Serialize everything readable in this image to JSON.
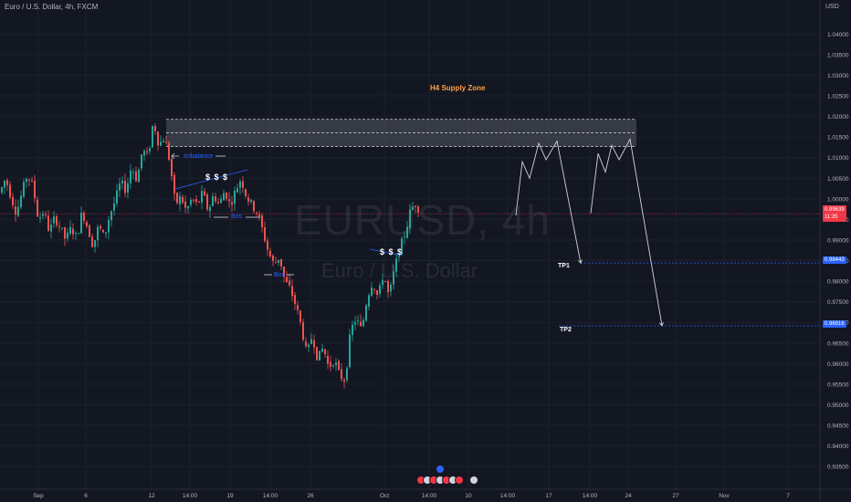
{
  "header": {
    "symbol_line": "Euro / U.S. Dollar, 4h, FXCM",
    "currency": "USD"
  },
  "watermark": {
    "ticker": "EURUSD, 4h",
    "name": "Euro / U.S. Dollar"
  },
  "annotations": {
    "supply_zone": "H4 Supply Zone",
    "imbalance": "Imbalance",
    "bos": "Bos",
    "liquidity": "$ $ $",
    "tp1": "TP1",
    "tp2": "TP2"
  },
  "price_tags": {
    "current": "0.99639",
    "countdown": "11:35",
    "tp1": "0.98443",
    "tp2": "0.96916"
  },
  "colors": {
    "background": "#131722",
    "up": "#26a69a",
    "down": "#ef5350",
    "grid": "#1e222d",
    "accent": "#2962ff",
    "supply_label": "#ff9f45"
  },
  "chart_data": {
    "type": "candlestick",
    "title": "Euro / U.S. Dollar, 4h, FXCM",
    "ylabel": "USD",
    "ylim": [
      0.9295,
      1.0465
    ],
    "y_ticks": [
      "1.04000",
      "1.03500",
      "1.03000",
      "1.02500",
      "1.02000",
      "1.01500",
      "1.01000",
      "1.00500",
      "1.00000",
      "0.99500",
      "0.99000",
      "0.98500",
      "0.98000",
      "0.97500",
      "0.97000",
      "0.96500",
      "0.96000",
      "0.95500",
      "0.95000",
      "0.94500",
      "0.94000",
      "0.93500"
    ],
    "x_ticks": [
      "Sep",
      "6",
      "12",
      "14:00",
      "19",
      "14:00",
      "26",
      "Oct",
      "14:00",
      "10",
      "14:00",
      "17",
      "14:00",
      "24",
      "27",
      "Nov",
      "7"
    ],
    "supply_zone": {
      "top": 1.0193,
      "mid": 1.016,
      "bottom": 1.0127
    },
    "current_price": 0.99639,
    "targets": [
      {
        "name": "TP1",
        "value": 0.98443
      },
      {
        "name": "TP2",
        "value": 0.96916
      }
    ],
    "ohlc_path": [
      [
        0,
        1.0015
      ],
      [
        6,
        1.005
      ],
      [
        12,
        1.0005
      ],
      [
        18,
        0.9965
      ],
      [
        24,
        1.0015
      ],
      [
        30,
        1.006
      ],
      [
        36,
        1.003
      ],
      [
        42,
        0.995
      ],
      [
        48,
        0.997
      ],
      [
        54,
        0.992
      ],
      [
        60,
        0.9955
      ],
      [
        66,
        0.993
      ],
      [
        72,
        0.99
      ],
      [
        78,
        0.993
      ],
      [
        84,
        0.9905
      ],
      [
        90,
        0.997
      ],
      [
        96,
        0.993
      ],
      [
        102,
        0.9885
      ],
      [
        108,
        0.9935
      ],
      [
        114,
        0.9905
      ],
      [
        120,
        0.996
      ],
      [
        126,
        0.9995
      ],
      [
        132,
        1.004
      ],
      [
        138,
        1.002
      ],
      [
        144,
        1.008
      ],
      [
        150,
        1.0045
      ],
      [
        156,
        1.012
      ],
      [
        162,
        1.01
      ],
      [
        168,
        1.019
      ],
      [
        174,
        1.013
      ],
      [
        180,
        1.015
      ],
      [
        186,
        1.009
      ],
      [
        192,
        0.9985
      ],
      [
        198,
        1.0005
      ],
      [
        204,
        0.997
      ],
      [
        210,
        1.0
      ],
      [
        216,
        0.9985
      ],
      [
        222,
        1.0015
      ],
      [
        228,
        0.997
      ],
      [
        234,
        1.001
      ],
      [
        240,
        0.9985
      ],
      [
        246,
        1.002
      ],
      [
        252,
        0.9985
      ],
      [
        258,
        1.002
      ],
      [
        264,
        1.005
      ],
      [
        270,
        1.0005
      ],
      [
        276,
        0.9985
      ],
      [
        282,
        0.9965
      ],
      [
        288,
        0.992
      ],
      [
        294,
        0.987
      ],
      [
        300,
        0.984
      ],
      [
        306,
        0.986
      ],
      [
        312,
        0.98
      ],
      [
        318,
        0.978
      ],
      [
        324,
        0.974
      ],
      [
        330,
        0.969
      ],
      [
        336,
        0.962
      ],
      [
        342,
        0.967
      ],
      [
        348,
        0.961
      ],
      [
        354,
        0.964
      ],
      [
        360,
        0.959
      ],
      [
        366,
        0.961
      ],
      [
        372,
        0.957
      ],
      [
        378,
        0.956
      ],
      [
        384,
        0.968
      ],
      [
        390,
        0.971
      ],
      [
        396,
        0.968
      ],
      [
        402,
        0.976
      ],
      [
        408,
        0.98
      ],
      [
        414,
        0.976
      ],
      [
        420,
        0.982
      ],
      [
        426,
        0.976
      ],
      [
        432,
        0.983
      ],
      [
        438,
        0.988
      ],
      [
        444,
        0.992
      ],
      [
        450,
        0.9975
      ],
      [
        456,
        0.999
      ],
      [
        460,
        0.9965
      ]
    ],
    "projection_path_1": [
      [
        565,
        0.996
      ],
      [
        572,
        1.009
      ],
      [
        580,
        1.005
      ],
      [
        590,
        1.0135
      ],
      [
        598,
        1.0095
      ],
      [
        610,
        1.014
      ],
      [
        636,
        0.9844
      ]
    ],
    "projection_path_2": [
      [
        647,
        0.9965
      ],
      [
        655,
        1.011
      ],
      [
        663,
        1.0065
      ],
      [
        670,
        1.013
      ],
      [
        678,
        1.0095
      ],
      [
        690,
        1.0145
      ],
      [
        725,
        0.9692
      ]
    ]
  }
}
